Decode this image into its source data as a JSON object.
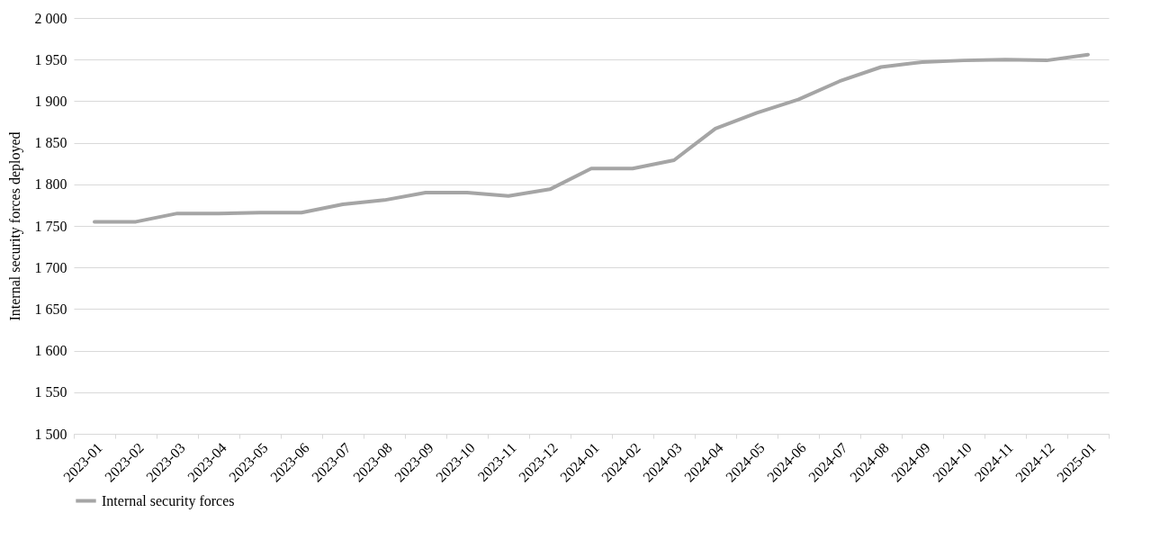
{
  "chart_data": {
    "type": "line",
    "ylabel": "Internal security forces deployed",
    "categories": [
      "2023-01",
      "2023-02",
      "2023-03",
      "2023-04",
      "2023-05",
      "2023-06",
      "2023-07",
      "2023-08",
      "2023-09",
      "2023-10",
      "2023-11",
      "2023-12",
      "2024-01",
      "2024-02",
      "2024-03",
      "2024-04",
      "2024-05",
      "2024-06",
      "2024-07",
      "2024-08",
      "2024-09",
      "2024-10",
      "2024-11",
      "2024-12",
      "2025-01"
    ],
    "series": [
      {
        "name": "Internal security forces",
        "color": "#a5a5a5",
        "values": [
          1755,
          1755,
          1765,
          1765,
          1766,
          1766,
          1776,
          1781,
          1790,
          1790,
          1786,
          1794,
          1819,
          1819,
          1829,
          1867,
          1886,
          1902,
          1924,
          1941,
          1947,
          1949,
          1950,
          1949,
          1956
        ]
      }
    ],
    "ylim": [
      1500,
      2000
    ],
    "yticks": [
      {
        "value": 1500,
        "label": "1 500"
      },
      {
        "value": 1550,
        "label": "1 550"
      },
      {
        "value": 1600,
        "label": "1 600"
      },
      {
        "value": 1650,
        "label": "1 650"
      },
      {
        "value": 1700,
        "label": "1 700"
      },
      {
        "value": 1750,
        "label": "1 750"
      },
      {
        "value": 1800,
        "label": "1 800"
      },
      {
        "value": 1850,
        "label": "1 850"
      },
      {
        "value": 1900,
        "label": "1 900"
      },
      {
        "value": 1950,
        "label": "1 950"
      },
      {
        "value": 2000,
        "label": "2 000"
      }
    ],
    "grid": "y",
    "legend": "bottom",
    "marker": "none",
    "line_style": "solid"
  }
}
